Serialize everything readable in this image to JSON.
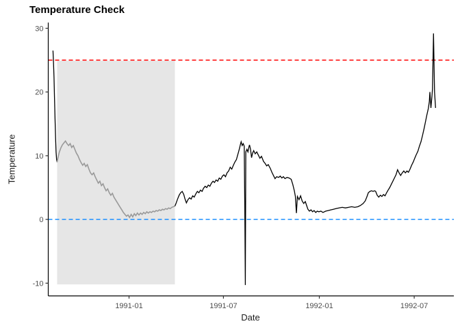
{
  "chart_data": {
    "type": "line",
    "title": "Temperature Check",
    "xlabel": "Date",
    "ylabel": "Temperature",
    "grid": false,
    "legend": "none",
    "background": "#FFFFFF",
    "axis_color": "#000000",
    "tick_color": "#333333",
    "tick_label_color": "#4D4D4D",
    "ylim": [
      -12,
      30.9
    ],
    "x_range": [
      "1990-07-30",
      "1992-09-15"
    ],
    "y_ticks": [
      30,
      20,
      10,
      0,
      -10
    ],
    "x_ticks": [
      {
        "date": "1991-01-01",
        "label": "1991-01"
      },
      {
        "date": "1991-07-01",
        "label": "1991-07"
      },
      {
        "date": "1992-01-01",
        "label": "1992-01"
      },
      {
        "date": "1992-07-01",
        "label": "1992-07"
      }
    ],
    "highlight_region": {
      "x_start": "1990-08-16",
      "x_end": "1991-03-30",
      "y_min": -10.2,
      "y_max": 24.9,
      "fill": "#E6E6E6"
    },
    "reference_lines": [
      {
        "name": "upper-threshold-line",
        "value": 25,
        "color": "#FF0000",
        "style": "dashed"
      },
      {
        "name": "zero-line",
        "value": 0,
        "color": "#1E90FF",
        "style": "dashed"
      }
    ],
    "series": [
      {
        "name": "temperature-start",
        "color": "#000000",
        "width": 1.3,
        "points": [
          [
            "1990-08-08",
            26.5
          ],
          [
            "1990-08-09",
            24.8
          ],
          [
            "1990-08-10",
            22.3
          ],
          [
            "1990-08-11",
            19.2
          ],
          [
            "1990-08-12",
            15.8
          ],
          [
            "1990-08-13",
            12.8
          ],
          [
            "1990-08-14",
            10.6
          ],
          [
            "1990-08-15",
            9.4
          ],
          [
            "1990-08-16",
            9.0
          ]
        ]
      },
      {
        "name": "temperature-highlighted",
        "color": "#999999",
        "width": 1.6,
        "points": [
          [
            "1990-08-16",
            9.0
          ],
          [
            "1990-08-18",
            9.8
          ],
          [
            "1990-08-20",
            10.5
          ],
          [
            "1990-08-23",
            11.2
          ],
          [
            "1990-08-26",
            11.7
          ],
          [
            "1990-08-29",
            12.0
          ],
          [
            "1990-09-01",
            12.3
          ],
          [
            "1990-09-04",
            11.9
          ],
          [
            "1990-09-07",
            11.6
          ],
          [
            "1990-09-10",
            11.9
          ],
          [
            "1990-09-13",
            11.3
          ],
          [
            "1990-09-16",
            11.6
          ],
          [
            "1990-09-19",
            11.0
          ],
          [
            "1990-09-22",
            10.4
          ],
          [
            "1990-09-25",
            10.0
          ],
          [
            "1990-09-28",
            9.4
          ],
          [
            "1990-10-01",
            8.9
          ],
          [
            "1990-10-04",
            8.5
          ],
          [
            "1990-10-07",
            8.8
          ],
          [
            "1990-10-10",
            8.3
          ],
          [
            "1990-10-13",
            8.6
          ],
          [
            "1990-10-16",
            7.9
          ],
          [
            "1990-10-19",
            7.3
          ],
          [
            "1990-10-22",
            7.0
          ],
          [
            "1990-10-25",
            7.3
          ],
          [
            "1990-10-28",
            6.7
          ],
          [
            "1990-10-31",
            6.2
          ],
          [
            "1990-11-03",
            5.7
          ],
          [
            "1990-11-06",
            6.0
          ],
          [
            "1990-11-09",
            5.3
          ],
          [
            "1990-11-12",
            5.6
          ],
          [
            "1990-11-15",
            5.0
          ],
          [
            "1990-11-18",
            4.5
          ],
          [
            "1990-11-21",
            4.8
          ],
          [
            "1990-11-24",
            4.2
          ],
          [
            "1990-11-27",
            3.8
          ],
          [
            "1990-11-30",
            4.1
          ],
          [
            "1990-12-03",
            3.5
          ],
          [
            "1990-12-06",
            3.1
          ],
          [
            "1990-12-09",
            2.7
          ],
          [
            "1990-12-12",
            2.3
          ],
          [
            "1990-12-15",
            1.9
          ],
          [
            "1990-12-18",
            1.5
          ],
          [
            "1990-12-21",
            1.1
          ],
          [
            "1990-12-24",
            0.8
          ],
          [
            "1990-12-27",
            0.5
          ],
          [
            "1990-12-30",
            0.7
          ],
          [
            "1991-01-02",
            0.3
          ],
          [
            "1991-01-05",
            0.8
          ],
          [
            "1991-01-08",
            0.4
          ],
          [
            "1991-01-11",
            0.9
          ],
          [
            "1991-01-14",
            0.6
          ],
          [
            "1991-01-17",
            1.0
          ],
          [
            "1991-01-20",
            0.7
          ],
          [
            "1991-01-23",
            1.0
          ],
          [
            "1991-01-26",
            0.8
          ],
          [
            "1991-01-29",
            1.1
          ],
          [
            "1991-02-01",
            0.9
          ],
          [
            "1991-02-04",
            1.2
          ],
          [
            "1991-02-07",
            1.0
          ],
          [
            "1991-02-10",
            1.2
          ],
          [
            "1991-02-13",
            1.1
          ],
          [
            "1991-02-16",
            1.3
          ],
          [
            "1991-02-19",
            1.2
          ],
          [
            "1991-02-22",
            1.4
          ],
          [
            "1991-02-25",
            1.3
          ],
          [
            "1991-02-28",
            1.5
          ],
          [
            "1991-03-03",
            1.4
          ],
          [
            "1991-03-06",
            1.6
          ],
          [
            "1991-03-09",
            1.5
          ],
          [
            "1991-03-12",
            1.7
          ],
          [
            "1991-03-15",
            1.6
          ],
          [
            "1991-03-18",
            1.8
          ],
          [
            "1991-03-21",
            1.7
          ],
          [
            "1991-03-24",
            1.9
          ],
          [
            "1991-03-27",
            2.0
          ],
          [
            "1991-03-30",
            2.1
          ]
        ]
      },
      {
        "name": "temperature-after",
        "color": "#000000",
        "width": 1.3,
        "points": [
          [
            "1991-03-30",
            2.1
          ],
          [
            "1991-04-01",
            2.5
          ],
          [
            "1991-04-04",
            3.2
          ],
          [
            "1991-04-07",
            3.8
          ],
          [
            "1991-04-10",
            4.2
          ],
          [
            "1991-04-13",
            4.4
          ],
          [
            "1991-04-16",
            3.9
          ],
          [
            "1991-04-18",
            3.3
          ],
          [
            "1991-04-21",
            2.6
          ],
          [
            "1991-04-24",
            3.1
          ],
          [
            "1991-04-27",
            3.4
          ],
          [
            "1991-04-30",
            3.2
          ],
          [
            "1991-05-03",
            3.7
          ],
          [
            "1991-05-06",
            3.5
          ],
          [
            "1991-05-09",
            4.0
          ],
          [
            "1991-05-12",
            4.4
          ],
          [
            "1991-05-15",
            4.2
          ],
          [
            "1991-05-18",
            4.6
          ],
          [
            "1991-05-21",
            4.4
          ],
          [
            "1991-05-24",
            4.9
          ],
          [
            "1991-05-27",
            5.2
          ],
          [
            "1991-05-30",
            5.0
          ],
          [
            "1991-06-02",
            5.4
          ],
          [
            "1991-06-05",
            5.2
          ],
          [
            "1991-06-08",
            5.7
          ],
          [
            "1991-06-11",
            6.0
          ],
          [
            "1991-06-14",
            5.8
          ],
          [
            "1991-06-17",
            6.2
          ],
          [
            "1991-06-20",
            6.0
          ],
          [
            "1991-06-23",
            6.5
          ],
          [
            "1991-06-26",
            6.3
          ],
          [
            "1991-06-29",
            6.8
          ],
          [
            "1991-07-02",
            7.0
          ],
          [
            "1991-07-05",
            6.7
          ],
          [
            "1991-07-08",
            7.3
          ],
          [
            "1991-07-11",
            7.6
          ],
          [
            "1991-07-14",
            8.2
          ],
          [
            "1991-07-17",
            7.9
          ],
          [
            "1991-07-20",
            8.5
          ],
          [
            "1991-07-23",
            9.0
          ],
          [
            "1991-07-26",
            9.4
          ],
          [
            "1991-07-28",
            10.0
          ],
          [
            "1991-07-30",
            10.6
          ],
          [
            "1991-08-01",
            11.2
          ],
          [
            "1991-08-03",
            11.9
          ],
          [
            "1991-08-04",
            12.2
          ],
          [
            "1991-08-06",
            11.6
          ],
          [
            "1991-08-08",
            11.9
          ],
          [
            "1991-08-10",
            11.5
          ],
          [
            "1991-08-11",
            2.1
          ],
          [
            "1991-08-12",
            -10.3
          ],
          [
            "1991-08-13",
            10.6
          ],
          [
            "1991-08-15",
            11.0
          ],
          [
            "1991-08-17",
            10.6
          ],
          [
            "1991-08-19",
            11.4
          ],
          [
            "1991-08-20",
            11.7
          ],
          [
            "1991-08-22",
            11.0
          ],
          [
            "1991-08-24",
            9.7
          ],
          [
            "1991-08-26",
            10.4
          ],
          [
            "1991-08-28",
            10.8
          ],
          [
            "1991-08-31",
            10.3
          ],
          [
            "1991-09-03",
            10.6
          ],
          [
            "1991-09-06",
            10.1
          ],
          [
            "1991-09-09",
            9.6
          ],
          [
            "1991-09-12",
            9.9
          ],
          [
            "1991-09-16",
            9.1
          ],
          [
            "1991-09-19",
            8.8
          ],
          [
            "1991-09-22",
            8.4
          ],
          [
            "1991-09-25",
            8.6
          ],
          [
            "1991-09-29",
            8.0
          ],
          [
            "1991-10-02",
            7.4
          ],
          [
            "1991-10-05",
            6.9
          ],
          [
            "1991-10-08",
            6.4
          ],
          [
            "1991-10-11",
            6.7
          ],
          [
            "1991-10-15",
            6.6
          ],
          [
            "1991-10-18",
            6.8
          ],
          [
            "1991-10-21",
            6.5
          ],
          [
            "1991-10-24",
            6.7
          ],
          [
            "1991-10-27",
            6.4
          ],
          [
            "1991-10-31",
            6.6
          ],
          [
            "1991-11-04",
            6.5
          ],
          [
            "1991-11-08",
            6.3
          ],
          [
            "1991-11-11",
            5.5
          ],
          [
            "1991-11-14",
            4.5
          ],
          [
            "1991-11-16",
            3.6
          ],
          [
            "1991-11-18",
            1.0
          ],
          [
            "1991-11-20",
            3.6
          ],
          [
            "1991-11-23",
            3.1
          ],
          [
            "1991-11-26",
            3.7
          ],
          [
            "1991-11-29",
            2.9
          ],
          [
            "1991-12-02",
            2.5
          ],
          [
            "1991-12-05",
            2.8
          ],
          [
            "1991-12-08",
            2.1
          ],
          [
            "1991-12-10",
            1.6
          ],
          [
            "1991-12-13",
            1.3
          ],
          [
            "1991-12-16",
            1.5
          ],
          [
            "1991-12-19",
            1.2
          ],
          [
            "1991-12-22",
            1.4
          ],
          [
            "1991-12-25",
            1.1
          ],
          [
            "1991-12-28",
            1.3
          ],
          [
            "1991-12-31",
            1.2
          ],
          [
            "1992-01-04",
            1.3
          ],
          [
            "1992-01-08",
            1.1
          ],
          [
            "1992-01-13",
            1.3
          ],
          [
            "1992-01-18",
            1.4
          ],
          [
            "1992-01-23",
            1.5
          ],
          [
            "1992-01-28",
            1.6
          ],
          [
            "1992-02-02",
            1.7
          ],
          [
            "1992-02-08",
            1.8
          ],
          [
            "1992-02-14",
            1.9
          ],
          [
            "1992-02-20",
            1.8
          ],
          [
            "1992-02-26",
            1.9
          ],
          [
            "1992-03-03",
            2.0
          ],
          [
            "1992-03-09",
            1.9
          ],
          [
            "1992-03-15",
            2.0
          ],
          [
            "1992-03-20",
            2.2
          ],
          [
            "1992-03-25",
            2.5
          ],
          [
            "1992-03-29",
            2.9
          ],
          [
            "1992-04-01",
            3.5
          ],
          [
            "1992-04-04",
            4.2
          ],
          [
            "1992-04-07",
            4.4
          ],
          [
            "1992-04-10",
            4.5
          ],
          [
            "1992-04-13",
            4.4
          ],
          [
            "1992-04-16",
            4.5
          ],
          [
            "1992-04-18",
            4.4
          ],
          [
            "1992-04-21",
            3.8
          ],
          [
            "1992-04-24",
            3.5
          ],
          [
            "1992-04-27",
            3.8
          ],
          [
            "1992-04-30",
            3.6
          ],
          [
            "1992-05-03",
            3.9
          ],
          [
            "1992-05-06",
            3.7
          ],
          [
            "1992-05-09",
            4.2
          ],
          [
            "1992-05-12",
            4.6
          ],
          [
            "1992-05-15",
            5.0
          ],
          [
            "1992-05-18",
            5.5
          ],
          [
            "1992-05-21",
            6.0
          ],
          [
            "1992-05-24",
            6.5
          ],
          [
            "1992-05-27",
            7.0
          ],
          [
            "1992-05-30",
            7.8
          ],
          [
            "1992-06-02",
            7.3
          ],
          [
            "1992-06-05",
            6.9
          ],
          [
            "1992-06-08",
            7.3
          ],
          [
            "1992-06-11",
            7.6
          ],
          [
            "1992-06-14",
            7.3
          ],
          [
            "1992-06-17",
            7.6
          ],
          [
            "1992-06-20",
            7.4
          ],
          [
            "1992-06-23",
            7.9
          ],
          [
            "1992-06-26",
            8.5
          ],
          [
            "1992-06-29",
            9.0
          ],
          [
            "1992-07-01",
            9.4
          ],
          [
            "1992-07-04",
            10.0
          ],
          [
            "1992-07-08",
            10.7
          ],
          [
            "1992-07-11",
            11.5
          ],
          [
            "1992-07-14",
            12.2
          ],
          [
            "1992-07-17",
            13.2
          ],
          [
            "1992-07-20",
            14.3
          ],
          [
            "1992-07-23",
            15.5
          ],
          [
            "1992-07-25",
            16.3
          ],
          [
            "1992-07-28",
            17.4
          ],
          [
            "1992-07-30",
            18.5
          ],
          [
            "1992-07-31",
            20.0
          ],
          [
            "1992-08-02",
            17.5
          ],
          [
            "1992-08-04",
            19.3
          ],
          [
            "1992-08-05",
            20.5
          ],
          [
            "1992-08-07",
            29.2
          ],
          [
            "1992-08-09",
            20.0
          ],
          [
            "1992-08-11",
            17.5
          ]
        ]
      }
    ]
  }
}
